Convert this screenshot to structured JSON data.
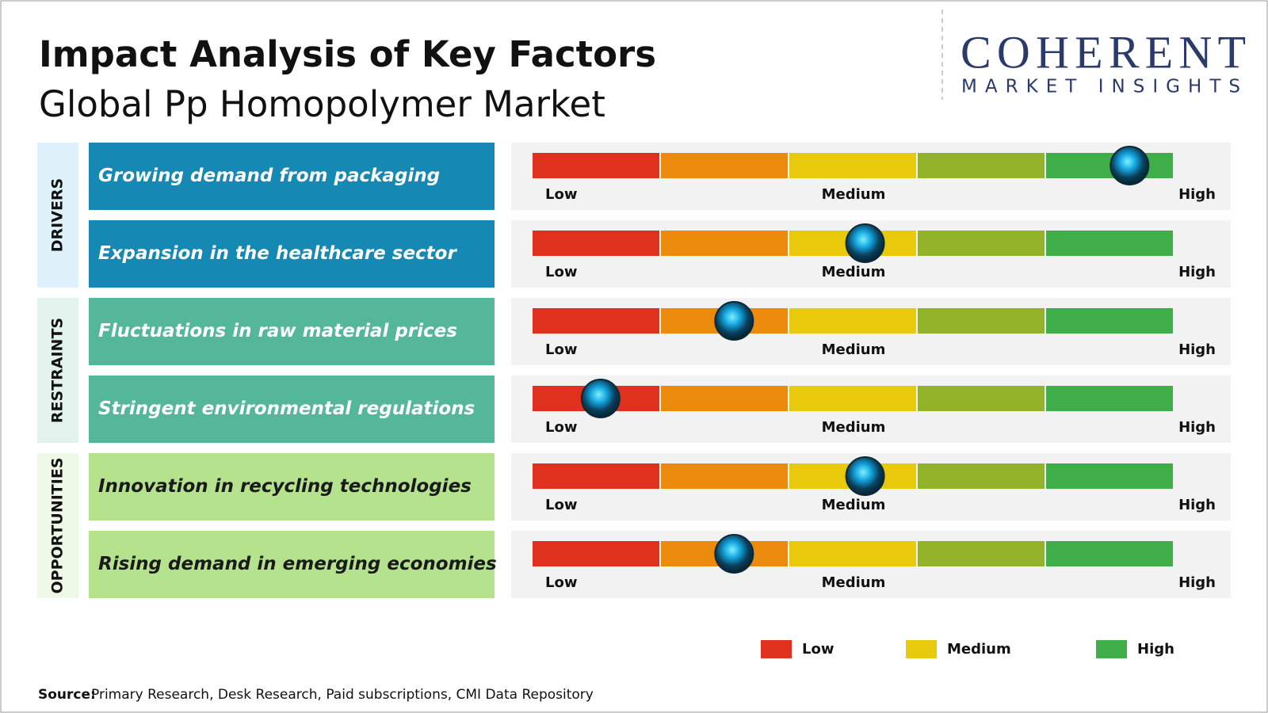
{
  "header": {
    "title": "Impact Analysis of Key Factors",
    "subtitle": "Global Pp Homopolymer Market"
  },
  "logo": {
    "name": "COHERENT",
    "tagline": "MARKET INSIGHTS"
  },
  "groups": [
    {
      "label": "DRIVERS",
      "color": "#1589b3",
      "background": "#dcf1f9",
      "text_color": "#ffffff",
      "factors": [
        {
          "text": "Growing demand from packaging",
          "impact": 4.65
        },
        {
          "text": "Expansion in the healthcare sector",
          "impact": 2.59
        }
      ]
    },
    {
      "label": "RESTRAINTS",
      "color": "#55b79a",
      "background": "#e2f3ed",
      "text_color": "#ffffff",
      "factors": [
        {
          "text": "Fluctuations in raw material prices",
          "impact": 1.57
        },
        {
          "text": "Stringent environmental regulations",
          "impact": 0.53
        }
      ]
    },
    {
      "label": "OPPORTUNITIES",
      "color": "#b4e28d",
      "background": "#eef8e6",
      "text_color": "#1a1a1a",
      "factors": [
        {
          "text": "Innovation in recycling technologies",
          "impact": 2.59
        },
        {
          "text": "Rising demand in emerging economies",
          "impact": 1.57
        }
      ]
    }
  ],
  "scale_labels": [
    "Low",
    "Medium",
    "High"
  ],
  "legend": [
    {
      "label": "Low",
      "color": "#e0301e"
    },
    {
      "label": "Medium",
      "color": "#e8c90c"
    },
    {
      "label": "High",
      "color": "#3fae49"
    }
  ],
  "source": {
    "label": "Source:",
    "text": "Primary Research, Desk Research, Paid subscriptions, CMI Data Repository"
  }
}
